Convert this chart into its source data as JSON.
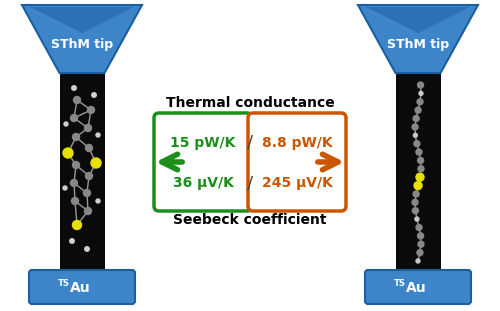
{
  "left_tip_label": "SThM tip",
  "right_tip_label": "SThM tip",
  "left_bottom_label": "Au",
  "right_bottom_label": "Au",
  "thermal_conductance_label": "Thermal conductance",
  "seebeck_label": "Seebeck coefficient",
  "green_value1": "15 pW/K",
  "green_value2": "36 μV/K",
  "orange_value1": "8.8 pW/K",
  "orange_value2": "245 μV/K",
  "green_color": "#1a8f1a",
  "orange_color": "#cc5500",
  "blue_color": "#3d85c8",
  "blue_dark": "#1a5fa0",
  "black_col_color": "#0a0a0a",
  "white": "#ffffff"
}
